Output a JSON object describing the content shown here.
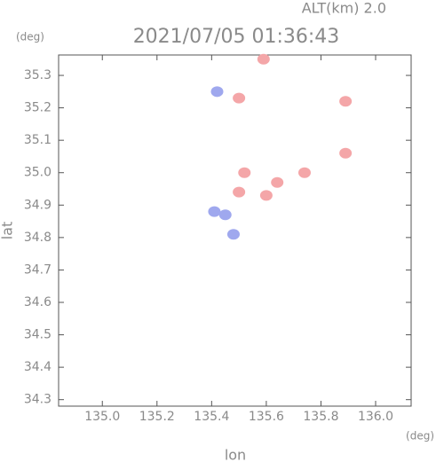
{
  "chart_data": {
    "type": "scatter",
    "title": "2021/07/05 01:36:43",
    "subtitle": "ALT(km) 2.0",
    "x_label": "lon",
    "y_label": "lat",
    "x_unit": "(deg)",
    "y_unit": "(deg)",
    "xlim": [
      134.84,
      136.13
    ],
    "ylim": [
      34.28,
      35.363
    ],
    "xticks": [
      {
        "value": 135,
        "label": "135.0"
      },
      135.2,
      135.4,
      135.6,
      135.8,
      {
        "value": 136,
        "label": "136.0"
      }
    ],
    "yticks": [
      34.3,
      34.4,
      34.5,
      34.6,
      34.7,
      34.8,
      34.9,
      {
        "value": 35,
        "label": "35.0"
      },
      35.1,
      35.2,
      35.3
    ],
    "series": [
      {
        "color": "#f4a6a8",
        "x": [
          135.59,
          135.5,
          135.89,
          135.89,
          135.74,
          135.6,
          135.64,
          135.5,
          135.52
        ],
        "values": [
          35.35,
          35.23,
          35.22,
          35.06,
          35.0,
          34.93,
          34.97,
          34.94,
          35.0
        ]
      },
      {
        "color": "#9fa8ee",
        "x": [
          135.42,
          135.45,
          135.48,
          135.41
        ],
        "values": [
          35.25,
          34.87,
          34.81,
          34.88
        ]
      }
    ]
  }
}
